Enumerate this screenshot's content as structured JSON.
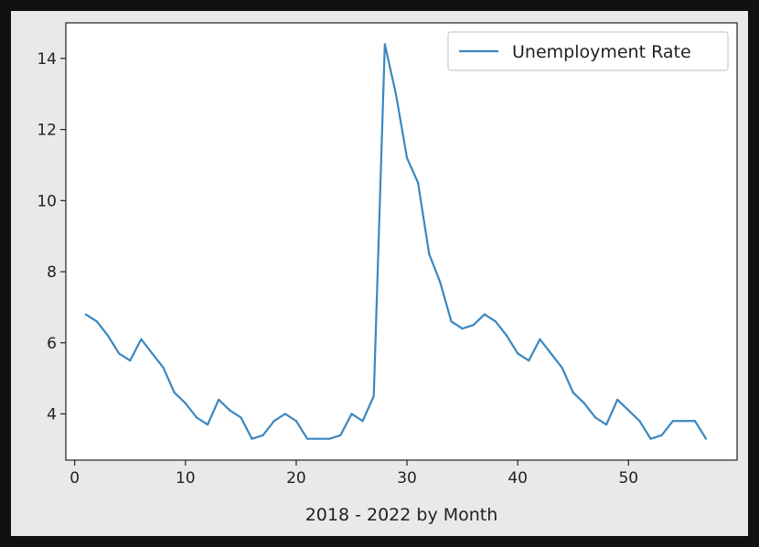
{
  "chart_data": {
    "type": "line",
    "title": "",
    "xlabel": "2018 - 2022 by Month",
    "ylabel": "",
    "xlim": [
      -0.8,
      59.8
    ],
    "ylim": [
      2.7,
      15.0
    ],
    "xticks": [
      0,
      10,
      20,
      30,
      40,
      50
    ],
    "yticks": [
      4,
      6,
      8,
      10,
      12,
      14
    ],
    "grid": false,
    "legend_position": "upper-right",
    "series": [
      {
        "name": "Unemployment Rate",
        "color": "#3a87c0",
        "x": [
          1,
          2,
          3,
          4,
          5,
          6,
          7,
          8,
          9,
          10,
          11,
          12,
          13,
          14,
          15,
          16,
          17,
          18,
          19,
          20,
          21,
          22,
          23,
          24,
          25,
          26,
          27,
          28,
          29,
          30,
          31,
          32,
          33,
          34,
          35,
          36,
          37,
          38,
          39,
          40,
          41,
          42,
          43,
          44,
          45,
          46,
          47,
          48,
          49,
          50,
          51,
          52,
          53,
          54,
          55,
          56,
          57
        ],
        "values": [
          6.8,
          6.6,
          6.2,
          5.7,
          5.5,
          6.1,
          5.7,
          5.3,
          4.6,
          4.3,
          3.9,
          3.7,
          4.4,
          4.1,
          3.9,
          3.3,
          3.4,
          3.8,
          4.0,
          3.8,
          3.3,
          3.3,
          3.3,
          3.4,
          4.0,
          3.8,
          4.5,
          14.4,
          13.0,
          11.2,
          10.5,
          8.5,
          7.7,
          6.6,
          6.4,
          6.5,
          6.8,
          6.6,
          6.2,
          5.7,
          5.5,
          6.1,
          5.7,
          5.3,
          4.6,
          4.3,
          3.9,
          3.7,
          4.4,
          4.1,
          3.8,
          3.3,
          3.4,
          3.8,
          3.8,
          3.8,
          3.3
        ]
      }
    ]
  }
}
